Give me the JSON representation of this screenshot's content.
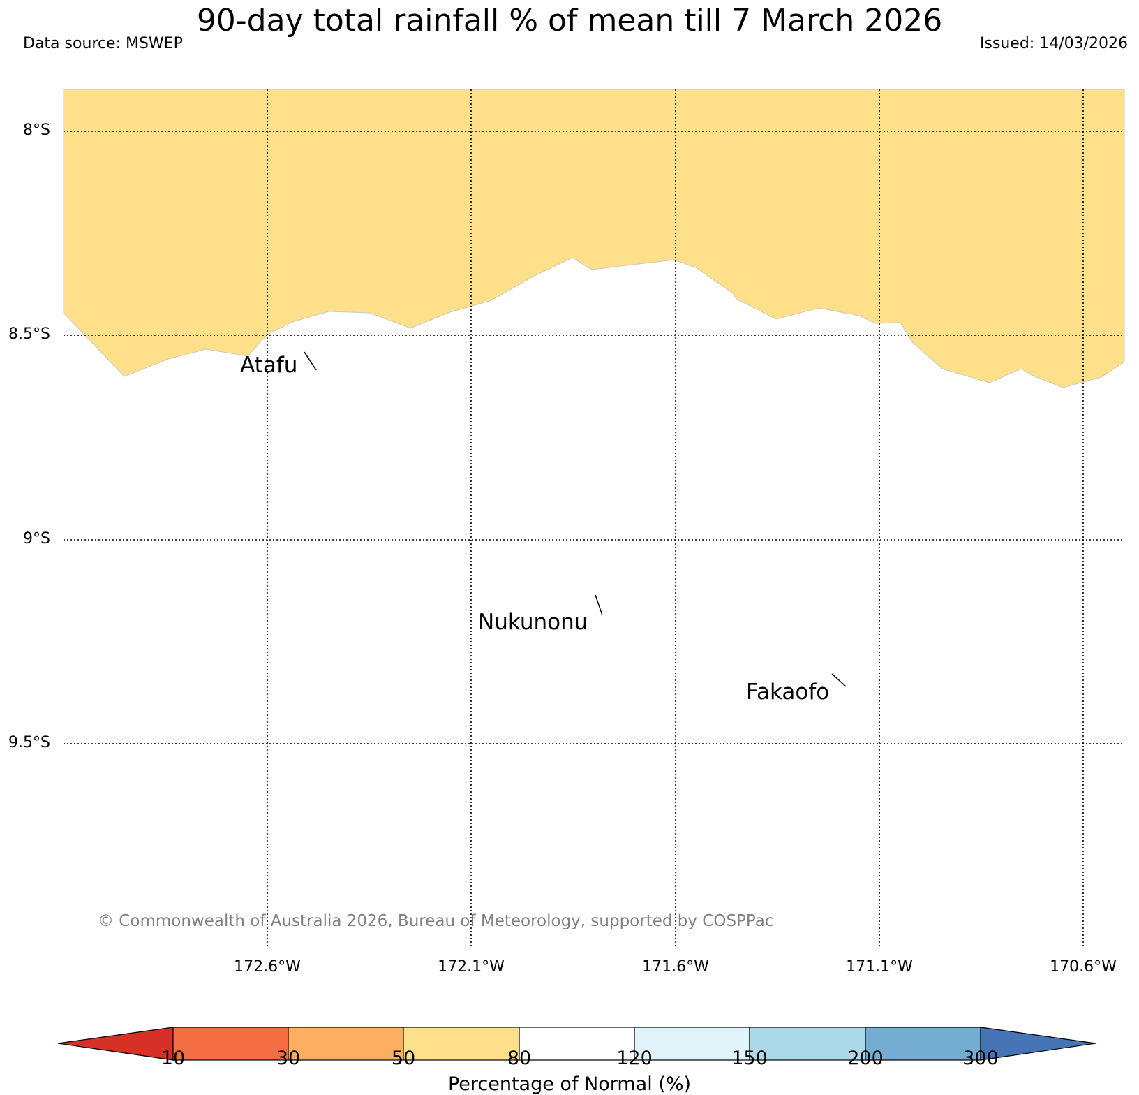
{
  "header": {
    "title": "90-day total rainfall % of mean till 7 March 2026",
    "source": "Data source: MSWEP",
    "issued": "Issued: 14/03/2026"
  },
  "map": {
    "lat_labels": [
      "8°S",
      "8.5°S",
      "9°S",
      "9.5°S"
    ],
    "lon_labels": [
      "172.6°W",
      "172.1°W",
      "171.6°W",
      "171.1°W",
      "170.6°W"
    ],
    "places": [
      "Atafu",
      "Nukunonu",
      "Fakaofo"
    ],
    "fill_color_50_80": "#fee08b",
    "copyright": "© Commonwealth of Australia 2026, Bureau of Meteorology, supported by COSPPac"
  },
  "colorbar": {
    "title": "Percentage of Normal (%)",
    "ticks": [
      "10",
      "30",
      "50",
      "80",
      "120",
      "150",
      "200",
      "300"
    ],
    "colors": [
      "#d73027",
      "#f46d43",
      "#fdae61",
      "#fee08b",
      "#ffffff",
      "#e0f3f8",
      "#abd9e9",
      "#74add1",
      "#4575b4"
    ]
  }
}
